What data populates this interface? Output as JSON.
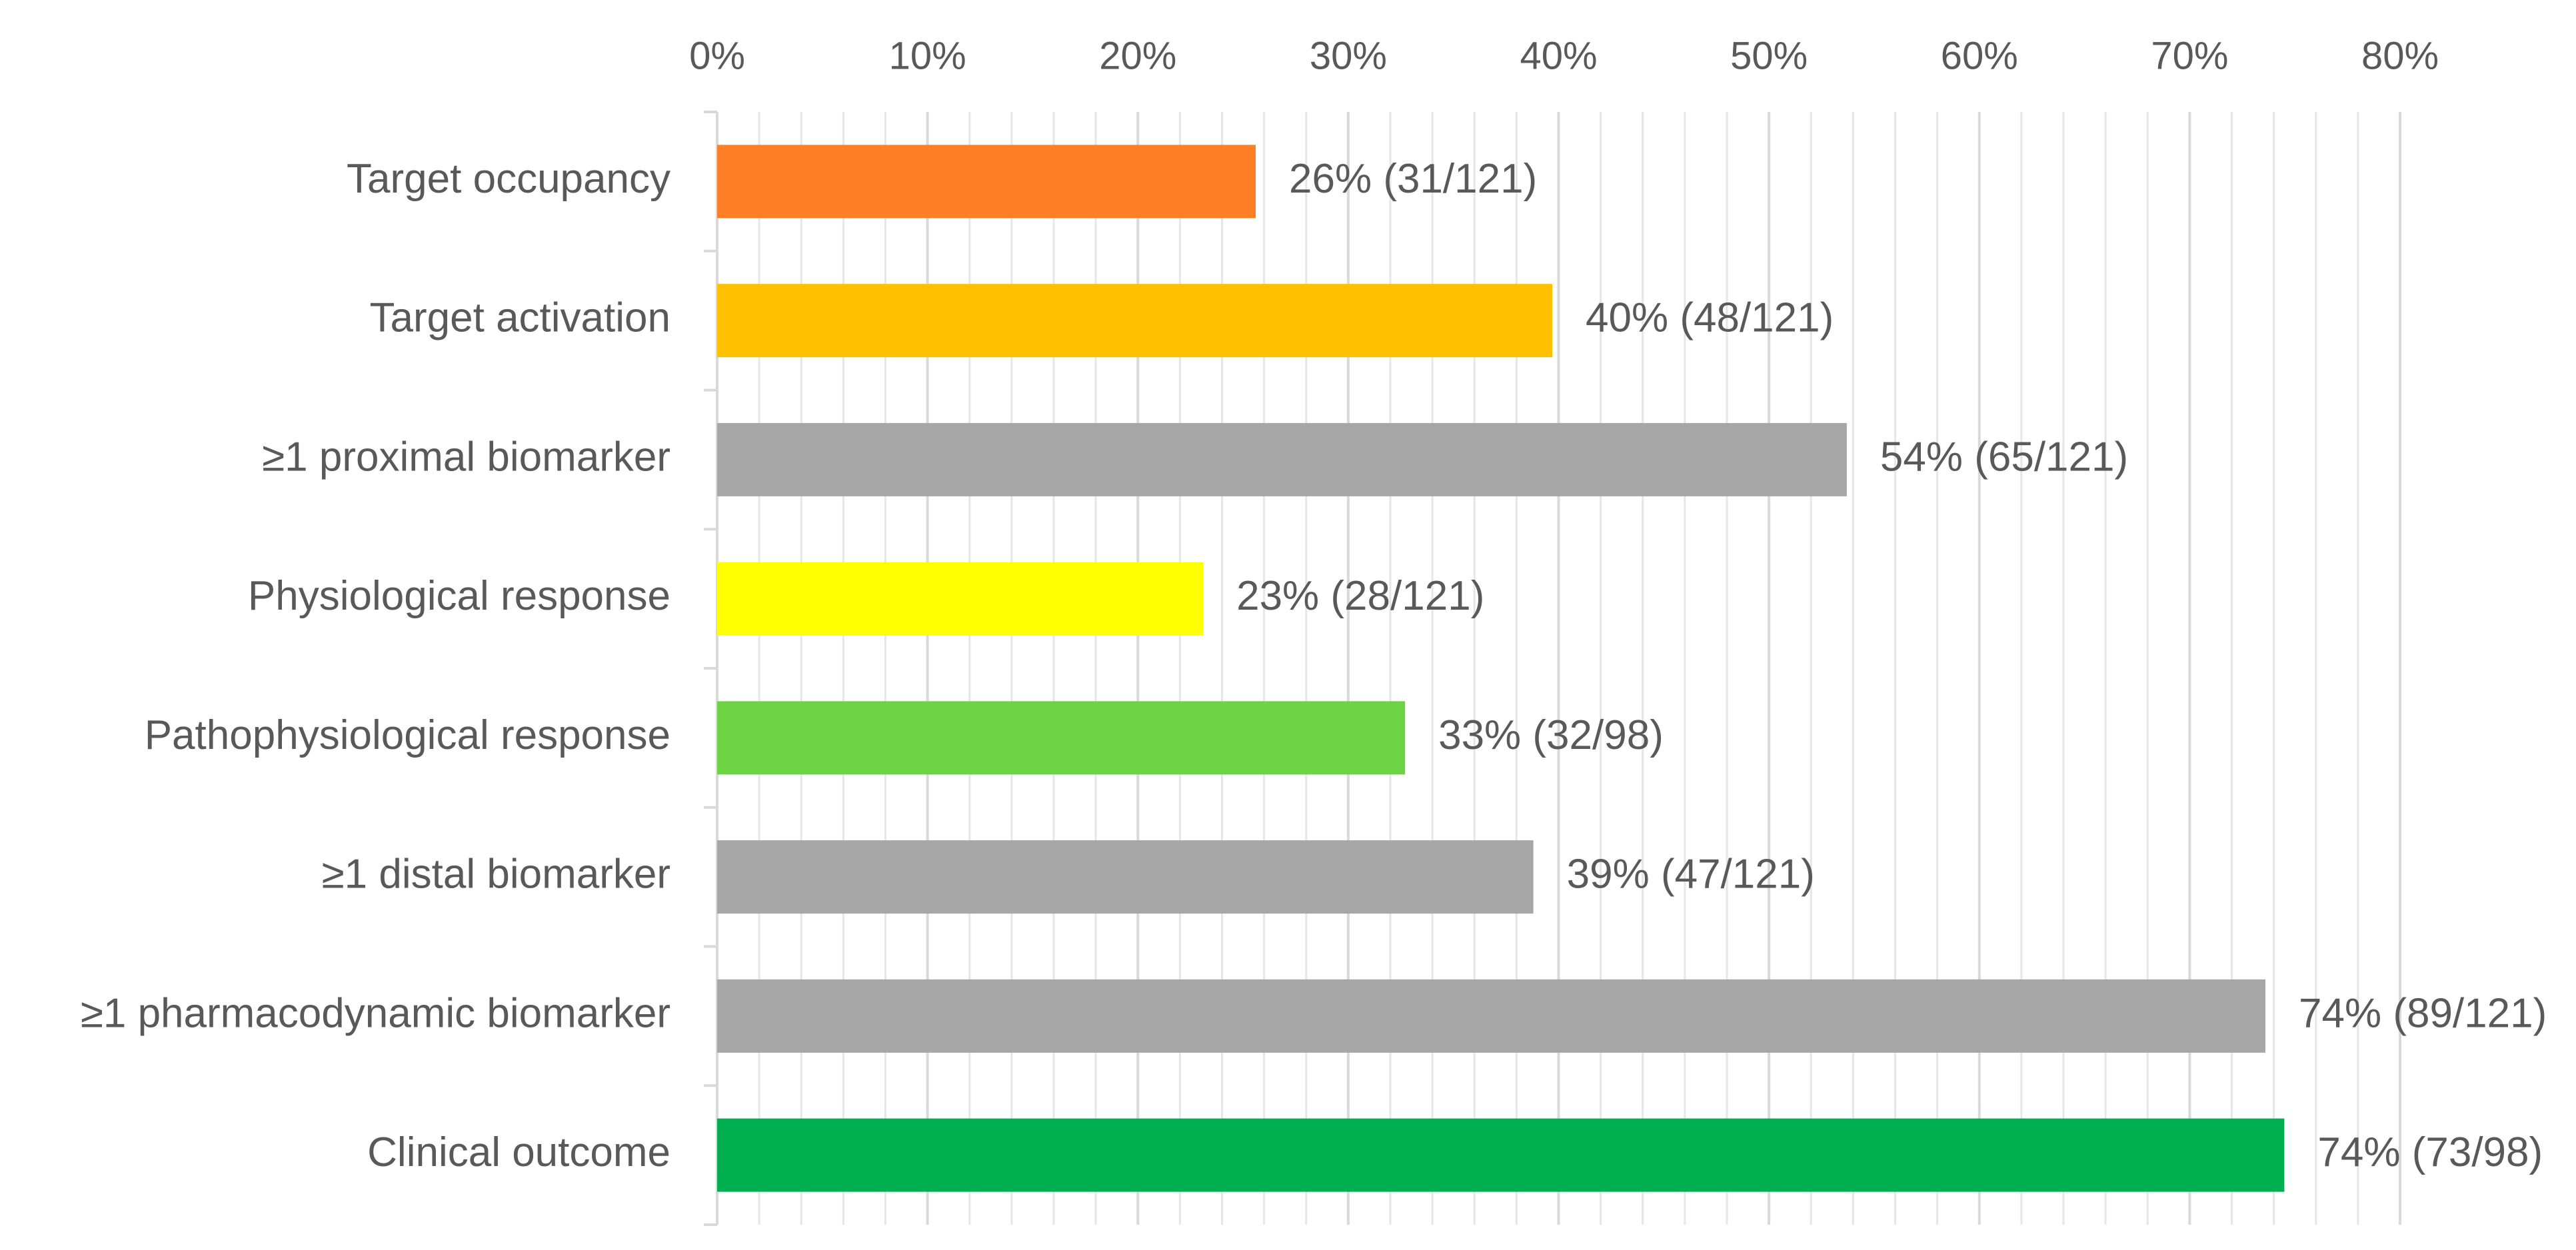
{
  "chart_data": {
    "type": "bar",
    "orientation": "horizontal",
    "x_axis_position": "top",
    "xlim": [
      0,
      80
    ],
    "x_major_step": 10,
    "x_minor_step": 2,
    "x_tick_labels": [
      "0%",
      "10%",
      "20%",
      "30%",
      "40%",
      "50%",
      "60%",
      "70%",
      "80%"
    ],
    "grid": true,
    "categories": [
      "Target occupancy",
      "Target activation",
      "≥1 proximal biomarker",
      "Physiological response",
      "Pathophysiological response",
      "≥1 distal biomarker",
      "≥1 pharmacodynamic biomarker",
      "Clinical outcome"
    ],
    "values": [
      25.6,
      39.7,
      53.7,
      23.1,
      32.7,
      38.8,
      73.6,
      74.5
    ],
    "data_labels": [
      "26% (31/121)",
      "40% (48/121)",
      "54% (65/121)",
      "23% (28/121)",
      "33% (32/98)",
      "39% (47/121)",
      "74% (89/121)",
      "74% (73/98)"
    ],
    "colors": [
      "#FF7F27",
      "#FFC000",
      "#A6A6A6",
      "#FFFF00",
      "#6CD443",
      "#A6A6A6",
      "#A6A6A6",
      "#00B050"
    ]
  }
}
